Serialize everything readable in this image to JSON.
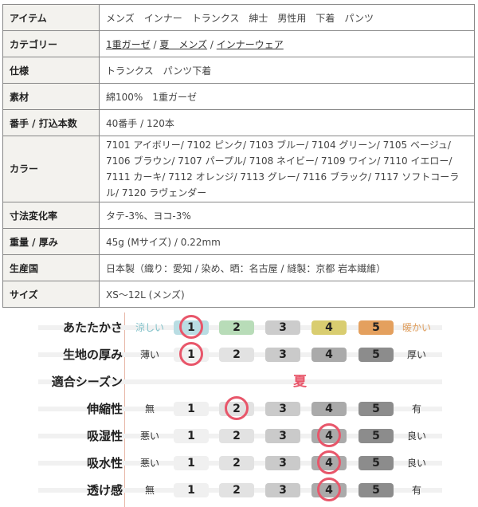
{
  "spec_table": [
    {
      "label": "アイテム",
      "value": "メンズ　インナー　トランクス　紳士　男性用　下着　パンツ"
    },
    {
      "label": "カテゴリー",
      "links": [
        "1重ガーゼ",
        "夏　メンズ",
        "インナーウェア"
      ],
      "separator": " / "
    },
    {
      "label": "仕様",
      "value": "トランクス　パンツ下着"
    },
    {
      "label": "素材",
      "value": "綿100%　1重ガーゼ"
    },
    {
      "label": "番手 / 打込本数",
      "value": "40番手 / 120本"
    },
    {
      "label": "カラー",
      "value": "7101 アイボリー/ 7102 ピンク/ 7103 ブルー/ 7104 グリーン/ 7105 ベージュ/ 7106 ブラウン/ 7107 パープル/ 7108 ネイビー/ 7109 ワイン/ 7110 イエロー/ 7111 カーキ/ 7112 オレンジ/ 7113 グレー/ 7116 ブラック/ 7117 ソフトコーラル/ 7120 ラヴェンダー"
    },
    {
      "label": "寸法変化率",
      "value": "タテ-3%、ヨコ-3%"
    },
    {
      "label": "重量 / 厚み",
      "value": "45g (Mサイズ) / 0.22mm"
    },
    {
      "label": "生産国",
      "value": "日本製（織り：愛知 / 染め、晒：名古屋 / 縫製：京都 岩本繊維）"
    },
    {
      "label": "サイズ",
      "value": "XS～12L (メンズ)"
    }
  ],
  "rating": {
    "scale": [
      "1",
      "2",
      "3",
      "4",
      "5"
    ],
    "highlight_color": "#e8566a",
    "rows": [
      {
        "label": "あたたかさ",
        "low": "涼しい",
        "high": "暖かい",
        "selected": 1,
        "colors": [
          "#b9dde3",
          "#b8dcb8",
          "#cccccc",
          "#d9cd70",
          "#e4a05e"
        ],
        "low_color": "#7fc0c8",
        "high_color": "#e0a060"
      },
      {
        "label": "生地の厚み",
        "low": "薄い",
        "high": "厚い",
        "selected": 1
      },
      {
        "label": "適合シーズン",
        "season": "夏"
      },
      {
        "label": "伸縮性",
        "low": "無",
        "high": "有",
        "selected": 2
      },
      {
        "label": "吸湿性",
        "low": "悪い",
        "high": "良い",
        "selected": 4
      },
      {
        "label": "吸水性",
        "low": "悪い",
        "high": "良い",
        "selected": 4
      },
      {
        "label": "透け感",
        "low": "無",
        "high": "有",
        "selected": 4
      }
    ],
    "gray_colors": [
      "#f0f0f0",
      "#e2e2e2",
      "#cacaca",
      "#aaaaaa",
      "#8c8c8c"
    ]
  }
}
